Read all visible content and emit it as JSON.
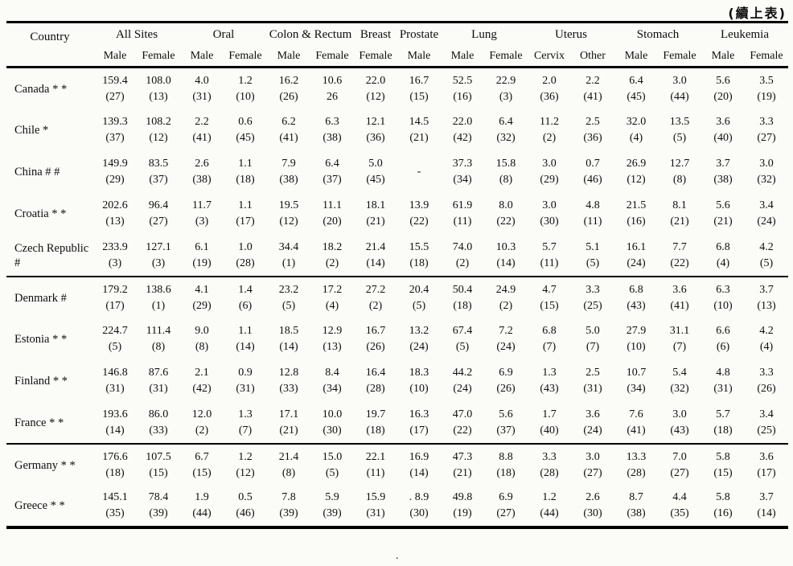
{
  "note": "(續上表)",
  "artifact_dot": ".",
  "table": {
    "groups": [
      {
        "label": "Country",
        "span": 1,
        "rowspan": 2
      },
      {
        "label": "All Sites",
        "span": 2
      },
      {
        "label": "Oral",
        "span": 2
      },
      {
        "label": "Colon & Rectum",
        "span": 2
      },
      {
        "label": "Breast",
        "span": 1
      },
      {
        "label": "Prostate",
        "span": 1
      },
      {
        "label": "Lung",
        "span": 2
      },
      {
        "label": "Uterus",
        "span": 2
      },
      {
        "label": "Stomach",
        "span": 2
      },
      {
        "label": "Leukemia",
        "span": 2
      }
    ],
    "subheaders": [
      "Male",
      "Female",
      "Male",
      "Female",
      "Male",
      "Female",
      "Female",
      "Male",
      "Male",
      "Female",
      "Cervix",
      "Other",
      "Male",
      "Female",
      "Male",
      "Female"
    ],
    "group_breaks": [
      4,
      8
    ],
    "rows": [
      {
        "country": "Canada * *",
        "cells": [
          [
            "159.4",
            "(27)"
          ],
          [
            "108.0",
            "(13)"
          ],
          [
            "4.0",
            "(31)"
          ],
          [
            "1.2",
            "(10)"
          ],
          [
            "16.2",
            "(26)"
          ],
          [
            "10.6",
            "26"
          ],
          [
            "22.0",
            "(12)"
          ],
          [
            "16.7",
            "(15)"
          ],
          [
            "52.5",
            "(16)"
          ],
          [
            "22.9",
            "(3)"
          ],
          [
            "2.0",
            "(36)"
          ],
          [
            "2.2",
            "(41)"
          ],
          [
            "6.4",
            "(45)"
          ],
          [
            "3.0",
            "(44)"
          ],
          [
            "5.6",
            "(20)"
          ],
          [
            "3.5",
            "(19)"
          ]
        ]
      },
      {
        "country": "Chile *",
        "cells": [
          [
            "139.3",
            "(37)"
          ],
          [
            "108.2",
            "(12)"
          ],
          [
            "2.2",
            "(41)"
          ],
          [
            "0.6",
            "(45)"
          ],
          [
            "6.2",
            "(41)"
          ],
          [
            "6.3",
            "(38)"
          ],
          [
            "12.1",
            "(36)"
          ],
          [
            "14.5",
            "(21)"
          ],
          [
            "22.0",
            "(42)"
          ],
          [
            "6.4",
            "(32)"
          ],
          [
            "11.2",
            "(2)"
          ],
          [
            "2.5",
            "(36)"
          ],
          [
            "32.0",
            "(4)"
          ],
          [
            "13.5",
            "(5)"
          ],
          [
            "3.6",
            "(40)"
          ],
          [
            "3.3",
            "(27)"
          ]
        ]
      },
      {
        "country": "China # #",
        "cells": [
          [
            "149.9",
            "(29)"
          ],
          [
            "83.5",
            "(37)"
          ],
          [
            "2.6",
            "(38)"
          ],
          [
            "1.1",
            "(18)"
          ],
          [
            "7.9",
            "(38)"
          ],
          [
            "6.4",
            "(37)"
          ],
          [
            "5.0",
            "(45)"
          ],
          [
            "-",
            ""
          ],
          [
            "37.3",
            "(34)"
          ],
          [
            "15.8",
            "(8)"
          ],
          [
            "3.0",
            "(29)"
          ],
          [
            "0.7",
            "(46)"
          ],
          [
            "26.9",
            "(12)"
          ],
          [
            "12.7",
            "(8)"
          ],
          [
            "3.7",
            "(38)"
          ],
          [
            "3.0",
            "(32)"
          ]
        ]
      },
      {
        "country": "Croatia * *",
        "cells": [
          [
            "202.6",
            "(13)"
          ],
          [
            "96.4",
            "(27)"
          ],
          [
            "11.7",
            "(3)"
          ],
          [
            "1.1",
            "(17)"
          ],
          [
            "19.5",
            "(12)"
          ],
          [
            "11.1",
            "(20)"
          ],
          [
            "18.1",
            "(21)"
          ],
          [
            "13.9",
            "(22)"
          ],
          [
            "61.9",
            "(11)"
          ],
          [
            "8.0",
            "(22)"
          ],
          [
            "3.0",
            "(30)"
          ],
          [
            "4.8",
            "(11)"
          ],
          [
            "21.5",
            "(16)"
          ],
          [
            "8.1",
            "(21)"
          ],
          [
            "5.6",
            "(21)"
          ],
          [
            "3.4",
            "(24)"
          ]
        ]
      },
      {
        "country": "Czech Republic #",
        "cells": [
          [
            "233.9",
            "(3)"
          ],
          [
            "127.1",
            "(3)"
          ],
          [
            "6.1",
            "(19)"
          ],
          [
            "1.0",
            "(28)"
          ],
          [
            "34.4",
            "(1)"
          ],
          [
            "18.2",
            "(2)"
          ],
          [
            "21.4",
            "(14)"
          ],
          [
            "15.5",
            "(18)"
          ],
          [
            "74.0",
            "(2)"
          ],
          [
            "10.3",
            "(14)"
          ],
          [
            "5.7",
            "(11)"
          ],
          [
            "5.1",
            "(5)"
          ],
          [
            "16.1",
            "(24)"
          ],
          [
            "7.7",
            "(22)"
          ],
          [
            "6.8",
            "(4)"
          ],
          [
            "4.2",
            "(5)"
          ]
        ]
      },
      {
        "country": "Denmark #",
        "cells": [
          [
            "179.2",
            "(17)"
          ],
          [
            "138.6",
            "(1)"
          ],
          [
            "4.1",
            "(29)"
          ],
          [
            "1.4",
            "(6)"
          ],
          [
            "23.2",
            "(5)"
          ],
          [
            "17.2",
            "(4)"
          ],
          [
            "27.2",
            "(2)"
          ],
          [
            "20.4",
            "(5)"
          ],
          [
            "50.4",
            "(18)"
          ],
          [
            "24.9",
            "(2)"
          ],
          [
            "4.7",
            "(15)"
          ],
          [
            "3.3",
            "(25)"
          ],
          [
            "6.8",
            "(43)"
          ],
          [
            "3.6",
            "(41)"
          ],
          [
            "6.3",
            "(10)"
          ],
          [
            "3.7",
            "(13)"
          ]
        ]
      },
      {
        "country": "Estonia * *",
        "cells": [
          [
            "224.7",
            "(5)"
          ],
          [
            "111.4",
            "(8)"
          ],
          [
            "9.0",
            "(8)"
          ],
          [
            "1.1",
            "(14)"
          ],
          [
            "18.5",
            "(14)"
          ],
          [
            "12.9",
            "(13)"
          ],
          [
            "16.7",
            "(26)"
          ],
          [
            "13.2",
            "(24)"
          ],
          [
            "67.4",
            "(5)"
          ],
          [
            "7.2",
            "(24)"
          ],
          [
            "6.8",
            "(7)"
          ],
          [
            "5.0",
            "(7)"
          ],
          [
            "27.9",
            "(10)"
          ],
          [
            "31.1",
            "(7)"
          ],
          [
            "6.6",
            "(6)"
          ],
          [
            "4.2",
            "(4)"
          ]
        ]
      },
      {
        "country": "Finland * *",
        "cells": [
          [
            "146.8",
            "(31)"
          ],
          [
            "87.6",
            "(31)"
          ],
          [
            "2.1",
            "(42)"
          ],
          [
            "0.9",
            "(31)"
          ],
          [
            "12.8",
            "(33)"
          ],
          [
            "8.4",
            "(34)"
          ],
          [
            "16.4",
            "(28)"
          ],
          [
            "18.3",
            "(10)"
          ],
          [
            "44.2",
            "(24)"
          ],
          [
            "6.9",
            "(26)"
          ],
          [
            "1.3",
            "(43)"
          ],
          [
            "2.5",
            "(31)"
          ],
          [
            "10.7",
            "(34)"
          ],
          [
            "5.4",
            "(32)"
          ],
          [
            "4.8",
            "(31)"
          ],
          [
            "3.3",
            "(26)"
          ]
        ]
      },
      {
        "country": "France * *",
        "cells": [
          [
            "193.6",
            "(14)"
          ],
          [
            "86.0",
            "(33)"
          ],
          [
            "12.0",
            "(2)"
          ],
          [
            "1.3",
            "(7)"
          ],
          [
            "17.1",
            "(21)"
          ],
          [
            "10.0",
            "(30)"
          ],
          [
            "19.7",
            "(18)"
          ],
          [
            "16.3",
            "(17)"
          ],
          [
            "47.0",
            "(22)"
          ],
          [
            "5.6",
            "(37)"
          ],
          [
            "1.7",
            "(40)"
          ],
          [
            "3.6",
            "(24)"
          ],
          [
            "7.6",
            "(41)"
          ],
          [
            "3.0",
            "(43)"
          ],
          [
            "5.7",
            "(18)"
          ],
          [
            "3.4",
            "(25)"
          ]
        ]
      },
      {
        "country": "Germany * *",
        "cells": [
          [
            "176.6",
            "(18)"
          ],
          [
            "107.5",
            "(15)"
          ],
          [
            "6.7",
            "(15)"
          ],
          [
            "1.2",
            "(12)"
          ],
          [
            "21.4",
            "(8)"
          ],
          [
            "15.0",
            "(5)"
          ],
          [
            "22.1",
            "(11)"
          ],
          [
            "16.9",
            "(14)"
          ],
          [
            "47.3",
            "(21)"
          ],
          [
            "8.8",
            "(18)"
          ],
          [
            "3.3",
            "(28)"
          ],
          [
            "3.0",
            "(27)"
          ],
          [
            "13.3",
            "(28)"
          ],
          [
            "7.0",
            "(27)"
          ],
          [
            "5.8",
            "(15)"
          ],
          [
            "3.6",
            "(17)"
          ]
        ]
      },
      {
        "country": "Greece * *",
        "cells": [
          [
            "145.1",
            "(35)"
          ],
          [
            "78.4",
            "(39)"
          ],
          [
            "1.9",
            "(44)"
          ],
          [
            "0.5",
            "(46)"
          ],
          [
            "7.8",
            "(39)"
          ],
          [
            "5.9",
            "(39)"
          ],
          [
            "15.9",
            "(31)"
          ],
          [
            ". 8.9",
            "(30)"
          ],
          [
            "49.8",
            "(19)"
          ],
          [
            "6.9",
            "(27)"
          ],
          [
            "1.2",
            "(44)"
          ],
          [
            "2.6",
            "(30)"
          ],
          [
            "8.7",
            "(38)"
          ],
          [
            "4.4",
            "(35)"
          ],
          [
            "5.8",
            "(16)"
          ],
          [
            "3.7",
            "(14)"
          ]
        ]
      }
    ]
  }
}
